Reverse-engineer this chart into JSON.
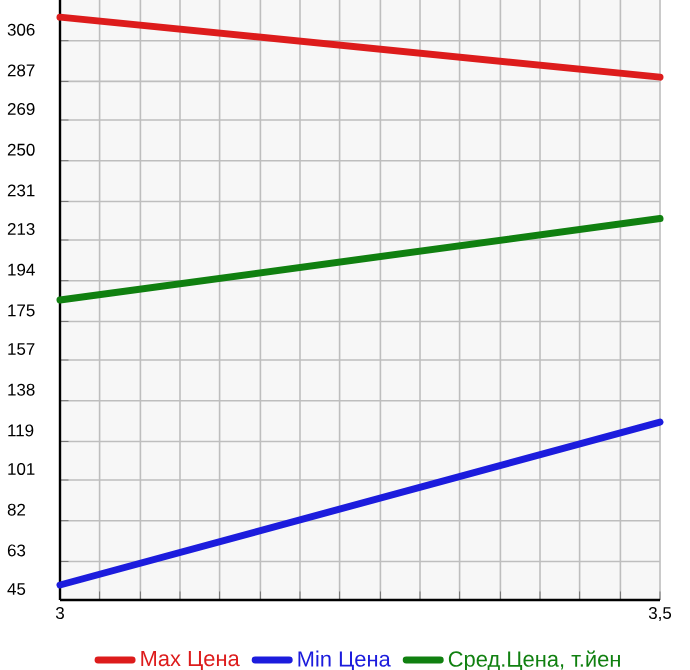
{
  "chart_data": {
    "type": "line",
    "x": [
      3,
      3.5
    ],
    "series": [
      {
        "name": "Max Цена",
        "color": "#dd1c1c",
        "values": [
          317,
          289
        ]
      },
      {
        "name": "Min Цена",
        "color": "#1c1cdd",
        "values": [
          52,
          128
        ]
      },
      {
        "name": "Сред.Цена, т.йен",
        "color": "#108010",
        "values": [
          185,
          223
        ]
      }
    ],
    "xlim": [
      3,
      3.5
    ],
    "xticks": [
      3,
      {
        "value": 3.033,
        "label": null
      },
      {
        "value": 3.067,
        "label": null
      },
      {
        "value": 3.1,
        "label": null
      },
      {
        "value": 3.133,
        "label": null
      },
      {
        "value": 3.167,
        "label": null
      },
      {
        "value": 3.2,
        "label": null
      },
      {
        "value": 3.233,
        "label": null
      },
      {
        "value": 3.267,
        "label": null
      },
      {
        "value": 3.3,
        "label": null
      },
      {
        "value": 3.333,
        "label": null
      },
      {
        "value": 3.367,
        "label": null
      },
      {
        "value": 3.4,
        "label": null
      },
      {
        "value": 3.433,
        "label": null
      },
      {
        "value": 3.467,
        "label": null
      },
      {
        "value": 3.5,
        "label": "3,5"
      }
    ],
    "ylim": [
      45,
      325
    ],
    "yticks": [
      45,
      63,
      82,
      101,
      119,
      138,
      157,
      175,
      194,
      213,
      231,
      250,
      269,
      287,
      306
    ],
    "grid": true,
    "legend": "bottom",
    "marker": "none",
    "line_style": "solid"
  }
}
